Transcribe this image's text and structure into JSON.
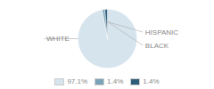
{
  "chart_data": {
    "type": "pie",
    "categories": [
      "WHITE",
      "HISPANIC",
      "BLACK"
    ],
    "values": [
      97.1,
      1.4,
      1.4
    ],
    "value_labels": [
      "97.1%",
      "1.4%",
      "1.4%"
    ],
    "colors": [
      "#d6e4ee",
      "#7aa3b8",
      "#2e5f7a"
    ],
    "legend": "bottom"
  }
}
